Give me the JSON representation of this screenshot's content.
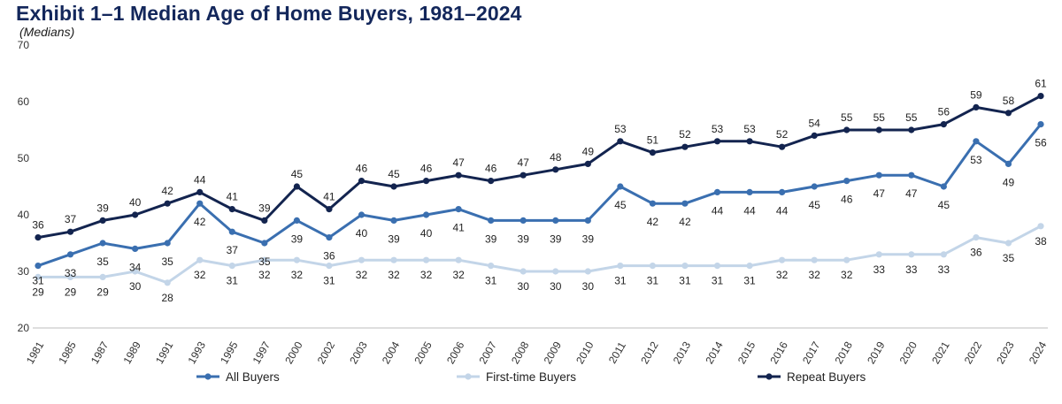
{
  "chart_data": {
    "type": "line",
    "title": "Exhibit 1–1 Median Age of Home Buyers, 1981–2024",
    "subtitle": "(Medians)",
    "xlabel": "",
    "ylabel": "",
    "ylim": [
      20,
      70
    ],
    "yticks": [
      20,
      30,
      40,
      50,
      60,
      70
    ],
    "grid": false,
    "legend_position": "bottom",
    "categories": [
      "1981",
      "1985",
      "1987",
      "1989",
      "1991",
      "1993",
      "1995",
      "1997",
      "2000",
      "2002",
      "2003",
      "2004",
      "2005",
      "2006",
      "2007",
      "2008",
      "2009",
      "2010",
      "2011",
      "2012",
      "2013",
      "2014",
      "2015",
      "2016",
      "2017",
      "2018",
      "2019",
      "2020",
      "2021",
      "2022",
      "2023",
      "2024"
    ],
    "series": [
      {
        "name": "All Buyers",
        "color": "#3a6fb0",
        "values": [
          31,
          33,
          35,
          34,
          35,
          42,
          37,
          35,
          39,
          36,
          40,
          39,
          40,
          41,
          39,
          39,
          39,
          39,
          45,
          42,
          42,
          44,
          44,
          44,
          45,
          46,
          47,
          47,
          45,
          53,
          49,
          56
        ]
      },
      {
        "name": "First-time Buyers",
        "color": "#c3d5e8",
        "values": [
          29,
          29,
          29,
          30,
          28,
          32,
          31,
          32,
          32,
          31,
          32,
          32,
          32,
          32,
          31,
          30,
          30,
          30,
          31,
          31,
          31,
          31,
          31,
          32,
          32,
          32,
          33,
          33,
          33,
          36,
          35,
          38
        ]
      },
      {
        "name": "Repeat Buyers",
        "color": "#13244f",
        "values": [
          36,
          37,
          39,
          40,
          42,
          44,
          41,
          39,
          45,
          41,
          46,
          45,
          46,
          47,
          46,
          47,
          48,
          49,
          53,
          51,
          52,
          53,
          53,
          52,
          54,
          55,
          55,
          55,
          56,
          59,
          58,
          61
        ]
      }
    ]
  }
}
